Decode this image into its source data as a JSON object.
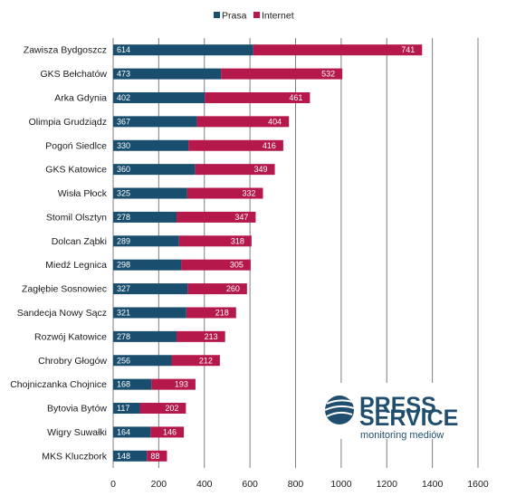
{
  "chart_data": {
    "type": "bar",
    "orientation": "horizontal",
    "stacked": true,
    "categories": [
      "Zawisza Bydgoszcz",
      "GKS Bełchatów",
      "Arka Gdynia",
      "Olimpia Grudziądz",
      "Pogoń Siedlce",
      "GKS Katowice",
      "Wisła Płock",
      "Stomil Olsztyn",
      "Dolcan Ząbki",
      "Miedź Legnica",
      "Zagłębie Sosnowiec",
      "Sandecja Nowy Sącz",
      "Rozwój Katowice",
      "Chrobry Głogów",
      "Chojniczanka Chojnice",
      "Bytovia Bytów",
      "Wigry Suwałki",
      "MKS Kluczbork"
    ],
    "series": [
      {
        "name": "Prasa",
        "color": "#1a4e6e",
        "values": [
          614,
          473,
          402,
          367,
          330,
          360,
          325,
          278,
          289,
          298,
          327,
          321,
          278,
          256,
          168,
          117,
          164,
          148
        ]
      },
      {
        "name": "Internet",
        "color": "#b5184a",
        "values": [
          741,
          532,
          461,
          404,
          416,
          349,
          332,
          347,
          318,
          305,
          260,
          218,
          213,
          212,
          193,
          202,
          146,
          88
        ]
      }
    ],
    "xlim": [
      0,
      1600
    ],
    "xticks": [
      "0",
      "200",
      "400",
      "600",
      "800",
      "1000",
      "1200",
      "1400",
      "1600"
    ],
    "grid": true,
    "legend_position": "top-center"
  },
  "logo": {
    "line1": "PRESS",
    "line2": "SERVICE",
    "tagline": "monitoring mediów"
  }
}
